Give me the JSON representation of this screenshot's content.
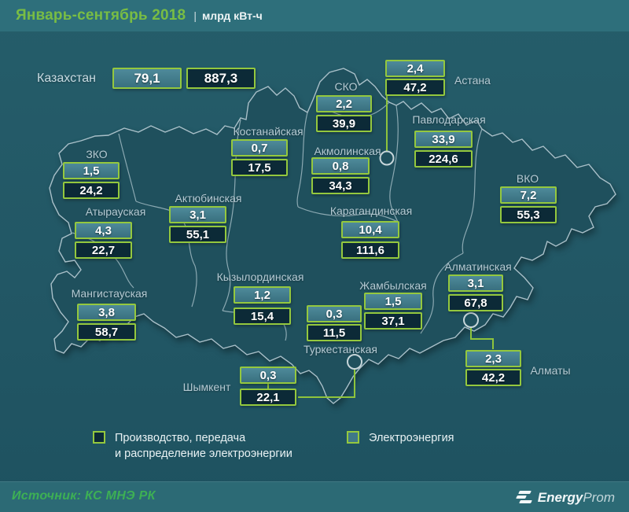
{
  "title": {
    "period": "Январь-сентябрь 2018",
    "separator": "|",
    "unit": "млрд кВт-ч"
  },
  "country": {
    "label": "Казахстан",
    "light": "79,1",
    "dark": "887,3"
  },
  "regions": [
    {
      "id": "sko",
      "label": "СКО",
      "light": "2,2",
      "dark": "39,9"
    },
    {
      "id": "astana",
      "label": "Астана",
      "light": "2,4",
      "dark": "47,2"
    },
    {
      "id": "pavlodar",
      "label": "Павлодарская",
      "light": "33,9",
      "dark": "224,6"
    },
    {
      "id": "kostanay",
      "label": "Костанайская",
      "light": "0,7",
      "dark": "17,5"
    },
    {
      "id": "akmola",
      "label": "Акмолинская",
      "light": "0,8",
      "dark": "34,3"
    },
    {
      "id": "zko",
      "label": "ЗКО",
      "light": "1,5",
      "dark": "24,2"
    },
    {
      "id": "vko",
      "label": "ВКО",
      "light": "7,2",
      "dark": "55,3"
    },
    {
      "id": "atyrau",
      "label": "Атырауская",
      "light": "4,3",
      "dark": "22,7"
    },
    {
      "id": "aktobe",
      "label": "Актюбинская",
      "light": "3,1",
      "dark": "55,1"
    },
    {
      "id": "karaganda",
      "label": "Карагандинская",
      "light": "10,4",
      "dark": "111,6"
    },
    {
      "id": "almaty_obl",
      "label": "Алматинская",
      "light": "3,1",
      "dark": "67,8"
    },
    {
      "id": "mangystau",
      "label": "Мангистауская",
      "light": "3,8",
      "dark": "58,7"
    },
    {
      "id": "kyzylorda",
      "label": "Кызылординская",
      "light": "1,2",
      "dark": "15,4"
    },
    {
      "id": "zhambyl",
      "label": "Жамбылская",
      "light": "1,5",
      "dark": "37,1"
    },
    {
      "id": "turkestan",
      "label": "Туркестанская",
      "light": "0,3",
      "dark": "11,5"
    },
    {
      "id": "shymkent",
      "label": "Шымкент",
      "light": "0,3",
      "dark": "22,1"
    },
    {
      "id": "almaty_city",
      "label": "Алматы",
      "light": "2,3",
      "dark": "42,2"
    }
  ],
  "legend": {
    "production_line1": "Производство, передача",
    "production_line2": "и распределение электроэнергии",
    "electricity": "Электроэнергия"
  },
  "footer": {
    "source": "Источник: КС МНЭ РК",
    "logo_bold": "Energy",
    "logo_light": "Prom"
  },
  "colors": {
    "accent_green": "#94c83e",
    "light_box": "#3f7888",
    "dark_box": "#0c2a37",
    "background": "#225765",
    "title_green": "#79bd44",
    "source_green": "#3db054"
  },
  "chart_data": {
    "type": "table",
    "title": "Январь-сентябрь 2018, млрд кВт-ч",
    "categories": [
      "Казахстан",
      "СКО",
      "Астана",
      "Павлодарская",
      "Костанайская",
      "Акмолинская",
      "ЗКО",
      "ВКО",
      "Атырауская",
      "Актюбинская",
      "Карагандинская",
      "Алматинская",
      "Мангистауская",
      "Кызылординская",
      "Жамбылская",
      "Туркестанская",
      "Шымкент",
      "Алматы"
    ],
    "series": [
      {
        "name": "Электроэнергия",
        "swatch": "light",
        "values": [
          79.1,
          2.2,
          2.4,
          33.9,
          0.7,
          0.8,
          1.5,
          7.2,
          4.3,
          3.1,
          10.4,
          3.1,
          3.8,
          1.2,
          1.5,
          0.3,
          0.3,
          2.3
        ]
      },
      {
        "name": "Производство, передача и распределение электроэнергии",
        "swatch": "dark",
        "values": [
          887.3,
          39.9,
          47.2,
          224.6,
          17.5,
          34.3,
          24.2,
          55.3,
          22.7,
          55.1,
          111.6,
          67.8,
          58.7,
          15.4,
          37.1,
          11.5,
          22.1,
          42.2
        ]
      }
    ],
    "legend_position": "bottom",
    "layout": "map-callouts"
  }
}
